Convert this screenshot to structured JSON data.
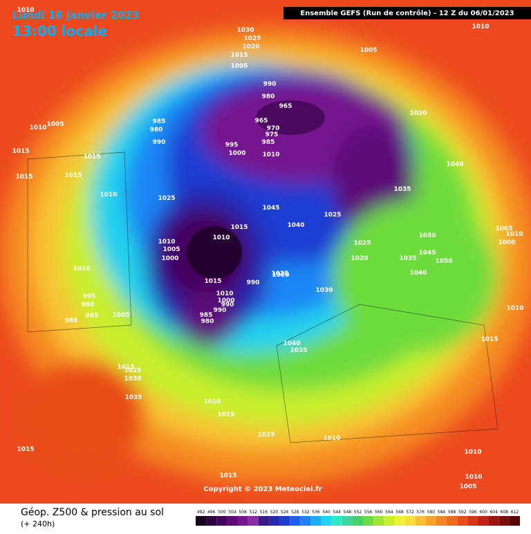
{
  "header": {
    "date": "Lundi 16 janvier 2023",
    "time": "13:00 locale",
    "run": "Ensemble GEFS  (Run de contrôle)  -  12 Z du 06/01/2023",
    "copyright": "Copyright © 2023 Meteociel.fr",
    "product": "Géop. Z500 & pression au sol",
    "lead": "(+ 240h)"
  },
  "isobar_labels": [
    "1010",
    "1030",
    "1025",
    "1020",
    "1015",
    "1005",
    "1005",
    "1010",
    "990",
    "980",
    "965",
    "965",
    "970",
    "975",
    "985",
    "995",
    "1000",
    "1010",
    "1020",
    "985",
    "980",
    "990",
    "1010",
    "1005",
    "1015",
    "1015",
    "1015",
    "1015",
    "1010",
    "1025",
    "1040",
    "1035",
    "1045",
    "1040",
    "1025",
    "1015",
    "1010",
    "1010",
    "1005",
    "1000",
    "1025",
    "1020",
    "1035",
    "1045",
    "1050",
    "1050",
    "1040",
    "1065",
    "1010",
    "1000",
    "1020",
    "1015",
    "990",
    "1025",
    "1030",
    "1010",
    "1000",
    "990",
    "990",
    "985",
    "980",
    "1010",
    "995",
    "990",
    "985",
    "1005",
    "985",
    "1010",
    "1015",
    "1040",
    "1035",
    "1015",
    "1025",
    "1030",
    "1035",
    "1010",
    "1015",
    "1025",
    "1010",
    "1015",
    "1010",
    "1015",
    "1010",
    "1005"
  ],
  "legend": {
    "values": [
      492,
      496,
      500,
      504,
      508,
      512,
      516,
      520,
      524,
      528,
      532,
      536,
      540,
      544,
      548,
      552,
      556,
      560,
      564,
      568,
      572,
      576,
      580,
      584,
      588,
      592,
      596,
      600,
      604,
      608,
      612
    ],
    "colors": [
      "#1a0020",
      "#2d0040",
      "#45005e",
      "#5c0a78",
      "#76168f",
      "#8a2aa6",
      "#3a1a8a",
      "#2828b0",
      "#1e3ed2",
      "#1c5ef0",
      "#1a86f5",
      "#18aef5",
      "#22d2ee",
      "#34e6c8",
      "#3ad89a",
      "#48d066",
      "#6edb3e",
      "#9ee632",
      "#c8ee2e",
      "#eef03a",
      "#f8dc3c",
      "#f8c030",
      "#f8a228",
      "#f58620",
      "#f06a1a",
      "#e84e18",
      "#d83416",
      "#c02214",
      "#a01410",
      "#800c0c",
      "#5a0606"
    ]
  }
}
